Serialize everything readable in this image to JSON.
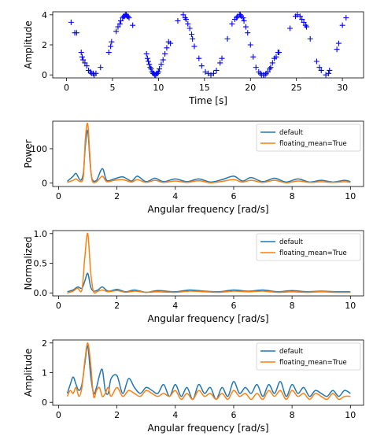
{
  "colors": {
    "series1": "#1f77b4",
    "series2": "#ff7f0e",
    "scatter": "#0000ff",
    "frame": "#000000"
  },
  "chart_data": [
    {
      "type": "scatter",
      "xlabel": "Time [s]",
      "ylabel": "Amplitude",
      "xlim": [
        -1.5,
        32.3
      ],
      "ylim": [
        -0.2,
        4.2
      ],
      "xticks": [
        0,
        5,
        10,
        15,
        20,
        25,
        30
      ],
      "yticks": [
        0,
        2,
        4
      ],
      "marker": "+",
      "model": {
        "mean": 2,
        "amp": 2,
        "omega": 1,
        "phase": 4.4,
        "note_estimated_from_image": true
      },
      "x": [
        0.5,
        0.9,
        1.1,
        1.6,
        1.7,
        1.8,
        2.0,
        2.2,
        2.4,
        2.6,
        2.7,
        2.9,
        3.0,
        3.2,
        3.7,
        4.6,
        4.8,
        4.9,
        5.4,
        5.6,
        5.8,
        5.9,
        6.1,
        6.2,
        6.3,
        6.4,
        6.5,
        6.6,
        6.7,
        6.8,
        7.2,
        8.7,
        8.8,
        8.9,
        9.0,
        9.1,
        9.2,
        9.3,
        9.4,
        9.5,
        9.6,
        9.7,
        9.8,
        9.9,
        10.0,
        10.1,
        10.3,
        10.5,
        10.7,
        10.9,
        11.1,
        11.3,
        12.1,
        12.7,
        12.9,
        13.0,
        13.2,
        13.4,
        13.6,
        13.7,
        13.9,
        14.4,
        14.7,
        15.1,
        15.4,
        15.7,
        16.0,
        16.3,
        16.7,
        16.9,
        17.5,
        18.0,
        18.3,
        18.5,
        18.6,
        18.8,
        18.9,
        19.0,
        19.2,
        19.3,
        19.5,
        19.7,
        20.0,
        20.3,
        20.6,
        20.9,
        21.1,
        21.2,
        21.4,
        21.6,
        21.7,
        21.9,
        22.1,
        22.2,
        22.4,
        22.6,
        22.8,
        23.0,
        23.1,
        24.3,
        24.9,
        25.1,
        25.4,
        25.6,
        25.8,
        26.0,
        26.1,
        26.5,
        27.2,
        27.5,
        27.7,
        28.2,
        28.5,
        28.6,
        29.4,
        29.6,
        30.0,
        30.4
      ],
      "y": [
        3.5,
        2.8,
        2.8,
        1.5,
        1.2,
        1.0,
        0.8,
        0.6,
        0.3,
        0.2,
        0.1,
        0.1,
        0.0,
        0.1,
        0.5,
        1.5,
        1.9,
        2.2,
        2.9,
        3.2,
        3.4,
        3.6,
        3.8,
        3.9,
        3.9,
        4.0,
        4.0,
        3.9,
        3.9,
        3.8,
        3.3,
        1.4,
        1.1,
        0.9,
        0.7,
        0.5,
        0.4,
        0.2,
        0.1,
        0.1,
        0.0,
        0.0,
        0.1,
        0.1,
        0.2,
        0.4,
        0.7,
        1.0,
        1.4,
        1.8,
        2.2,
        2.1,
        3.6,
        4.0,
        3.8,
        3.7,
        3.4,
        3.1,
        2.7,
        2.4,
        1.9,
        1.1,
        0.6,
        0.2,
        0.1,
        0.0,
        0.1,
        0.3,
        0.8,
        1.1,
        2.4,
        3.4,
        3.7,
        3.8,
        3.9,
        4.0,
        4.0,
        3.9,
        3.8,
        3.6,
        3.2,
        2.8,
        2.0,
        1.2,
        0.5,
        0.2,
        0.1,
        0.0,
        0.0,
        0.0,
        0.1,
        0.2,
        0.4,
        0.5,
        0.8,
        1.1,
        1.2,
        1.5,
        1.5,
        3.1,
        3.9,
        4.0,
        3.9,
        3.7,
        3.5,
        3.3,
        3.2,
        2.4,
        0.9,
        0.5,
        0.3,
        0.0,
        0.1,
        0.3,
        1.7,
        2.1,
        3.3,
        3.8
      ]
    },
    {
      "type": "line",
      "xlabel": "Angular frequency [rad/s]",
      "ylabel": "Power",
      "xlim": [
        -0.2,
        10.45
      ],
      "ylim": [
        -10,
        180
      ],
      "xticks": [
        0,
        2,
        4,
        6,
        8,
        10
      ],
      "yticks": [
        0,
        100
      ],
      "legend": "top-right",
      "series": [
        {
          "name": "default",
          "x": [
            0.3,
            0.5,
            0.6,
            0.75,
            0.85,
            0.92,
            1.0,
            1.08,
            1.15,
            1.3,
            1.5,
            1.65,
            1.9,
            2.2,
            2.5,
            2.7,
            3.0,
            3.3,
            3.6,
            4.0,
            4.4,
            4.8,
            5.2,
            5.6,
            6.0,
            6.3,
            6.6,
            7.0,
            7.4,
            7.8,
            8.2,
            8.6,
            9.0,
            9.4,
            9.8,
            10.0
          ],
          "y": [
            5,
            20,
            28,
            8,
            30,
            110,
            152,
            60,
            12,
            8,
            42,
            8,
            12,
            18,
            6,
            20,
            4,
            14,
            4,
            12,
            4,
            12,
            3,
            10,
            20,
            6,
            16,
            4,
            14,
            3,
            12,
            3,
            8,
            3,
            8,
            4
          ]
        },
        {
          "name": "floating_mean=True",
          "x": [
            0.3,
            0.5,
            0.6,
            0.75,
            0.85,
            0.92,
            1.0,
            1.08,
            1.15,
            1.3,
            1.5,
            1.65,
            1.9,
            2.2,
            2.5,
            2.7,
            3.0,
            3.3,
            3.6,
            4.0,
            4.4,
            4.8,
            5.2,
            5.6,
            6.0,
            6.3,
            6.6,
            7.0,
            7.4,
            7.8,
            8.2,
            8.6,
            9.0,
            9.4,
            9.8,
            10.0
          ],
          "y": [
            2,
            8,
            12,
            4,
            20,
            130,
            172,
            70,
            8,
            4,
            20,
            4,
            8,
            10,
            3,
            10,
            2,
            8,
            2,
            6,
            2,
            7,
            1,
            5,
            10,
            3,
            8,
            2,
            8,
            1,
            6,
            2,
            4,
            2,
            4,
            2
          ]
        }
      ]
    },
    {
      "type": "line",
      "xlabel": "Angular frequency [rad/s]",
      "ylabel": "Normalized",
      "xlim": [
        -0.2,
        10.45
      ],
      "ylim": [
        -0.05,
        1.05
      ],
      "xticks": [
        0,
        2,
        4,
        6,
        8,
        10
      ],
      "yticks": [
        0.0,
        0.5,
        1.0
      ],
      "legend": "top-right",
      "series": [
        {
          "name": "default",
          "x": [
            0.3,
            0.5,
            0.65,
            0.8,
            0.9,
            1.0,
            1.1,
            1.2,
            1.35,
            1.5,
            1.7,
            2.0,
            2.3,
            2.6,
            3.0,
            3.4,
            4.0,
            4.5,
            5.0,
            5.5,
            6.0,
            6.5,
            7.0,
            7.5,
            8.0,
            8.5,
            9.0,
            9.5,
            10.0
          ],
          "y": [
            0.02,
            0.05,
            0.1,
            0.08,
            0.2,
            0.33,
            0.1,
            0.03,
            0.05,
            0.1,
            0.03,
            0.06,
            0.02,
            0.05,
            0.01,
            0.04,
            0.02,
            0.05,
            0.03,
            0.02,
            0.05,
            0.03,
            0.05,
            0.02,
            0.04,
            0.02,
            0.03,
            0.02,
            0.02
          ]
        },
        {
          "name": "floating_mean=True",
          "x": [
            0.3,
            0.5,
            0.65,
            0.8,
            0.9,
            1.0,
            1.1,
            1.2,
            1.35,
            1.5,
            1.7,
            2.0,
            2.3,
            2.6,
            3.0,
            3.4,
            4.0,
            4.5,
            5.0,
            5.5,
            6.0,
            6.5,
            7.0,
            7.5,
            8.0,
            8.5,
            9.0,
            9.5,
            10.0
          ],
          "y": [
            0.0,
            0.03,
            0.08,
            0.05,
            0.6,
            1.0,
            0.35,
            0.02,
            0.03,
            0.05,
            0.02,
            0.04,
            0.01,
            0.03,
            0.01,
            0.02,
            0.01,
            0.03,
            0.02,
            0.01,
            0.03,
            0.02,
            0.03,
            0.01,
            0.02,
            0.01,
            0.02,
            0.01,
            0.01
          ]
        }
      ]
    },
    {
      "type": "line",
      "xlabel": "Angular frequency [rad/s]",
      "ylabel": "Amplitude",
      "xlim": [
        -0.2,
        10.45
      ],
      "ylim": [
        -0.1,
        2.1
      ],
      "xticks": [
        0,
        2,
        4,
        6,
        8,
        10
      ],
      "yticks": [
        0,
        1,
        2
      ],
      "legend": "top-right",
      "series": [
        {
          "name": "default",
          "x": [
            0.3,
            0.4,
            0.5,
            0.6,
            0.7,
            0.8,
            0.9,
            1.0,
            1.1,
            1.2,
            1.3,
            1.4,
            1.5,
            1.6,
            1.7,
            1.8,
            2.0,
            2.2,
            2.4,
            2.6,
            2.8,
            3.0,
            3.2,
            3.4,
            3.6,
            3.8,
            4.0,
            4.2,
            4.4,
            4.6,
            4.8,
            5.0,
            5.2,
            5.4,
            5.6,
            5.8,
            6.0,
            6.2,
            6.4,
            6.6,
            6.8,
            7.0,
            7.2,
            7.4,
            7.6,
            7.8,
            8.0,
            8.2,
            8.4,
            8.6,
            8.8,
            9.0,
            9.2,
            9.4,
            9.6,
            9.8,
            10.0
          ],
          "y": [
            0.3,
            0.6,
            0.85,
            0.6,
            0.4,
            0.6,
            1.3,
            1.9,
            0.9,
            0.3,
            0.5,
            0.9,
            1.1,
            0.4,
            0.3,
            0.8,
            0.9,
            0.3,
            0.8,
            0.5,
            0.3,
            0.5,
            0.4,
            0.3,
            0.6,
            0.2,
            0.6,
            0.2,
            0.5,
            0.1,
            0.6,
            0.3,
            0.5,
            0.1,
            0.5,
            0.2,
            0.7,
            0.3,
            0.5,
            0.3,
            0.6,
            0.2,
            0.6,
            0.3,
            0.7,
            0.2,
            0.6,
            0.3,
            0.5,
            0.2,
            0.4,
            0.3,
            0.2,
            0.4,
            0.2,
            0.4,
            0.3
          ]
        },
        {
          "name": "floating_mean=True",
          "x": [
            0.3,
            0.4,
            0.5,
            0.6,
            0.7,
            0.8,
            0.9,
            1.0,
            1.1,
            1.2,
            1.3,
            1.4,
            1.5,
            1.6,
            1.7,
            1.8,
            2.0,
            2.2,
            2.4,
            2.6,
            2.8,
            3.0,
            3.2,
            3.4,
            3.6,
            3.8,
            4.0,
            4.2,
            4.4,
            4.6,
            4.8,
            5.0,
            5.2,
            5.4,
            5.6,
            5.8,
            6.0,
            6.2,
            6.4,
            6.6,
            6.8,
            7.0,
            7.2,
            7.4,
            7.6,
            7.8,
            8.0,
            8.2,
            8.4,
            8.6,
            8.8,
            9.0,
            9.2,
            9.4,
            9.6,
            9.8,
            10.0
          ],
          "y": [
            0.2,
            0.4,
            0.3,
            0.5,
            0.2,
            0.5,
            1.4,
            2.0,
            1.3,
            0.2,
            0.4,
            0.5,
            0.2,
            0.3,
            0.5,
            0.2,
            0.5,
            0.2,
            0.4,
            0.3,
            0.2,
            0.4,
            0.3,
            0.2,
            0.3,
            0.2,
            0.4,
            0.1,
            0.3,
            0.1,
            0.4,
            0.2,
            0.3,
            0.1,
            0.3,
            0.1,
            0.4,
            0.2,
            0.3,
            0.1,
            0.3,
            0.1,
            0.4,
            0.2,
            0.4,
            0.1,
            0.4,
            0.2,
            0.3,
            0.1,
            0.3,
            0.2,
            0.1,
            0.3,
            0.1,
            0.2,
            0.2
          ]
        }
      ]
    }
  ]
}
